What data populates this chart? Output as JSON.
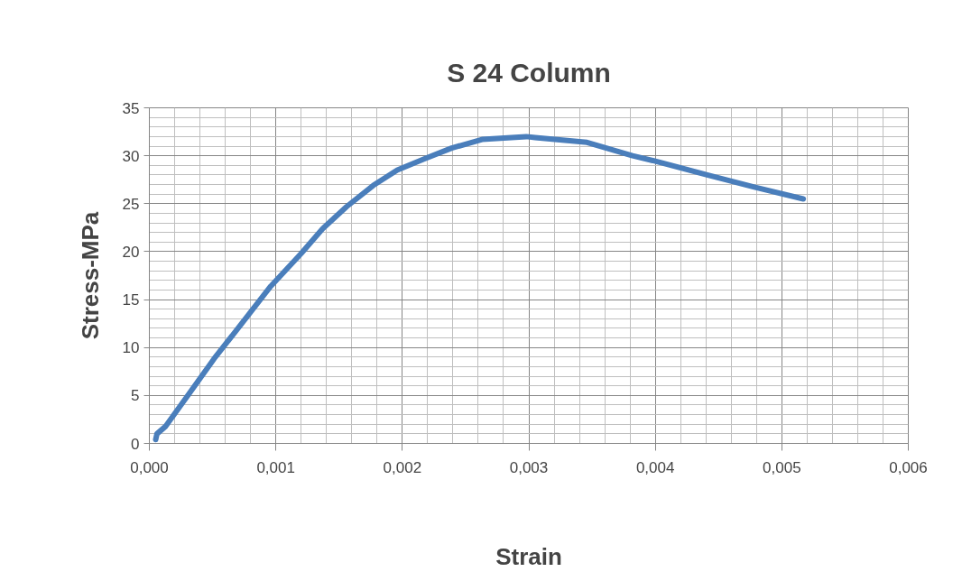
{
  "chart_data": {
    "type": "line",
    "title": "S 24 Column",
    "xlabel": "Strain",
    "ylabel": "Stress-MPa",
    "x": [
      5e-05,
      6e-05,
      0.00013,
      0.00032,
      0.00051,
      0.00073,
      0.00096,
      0.0012,
      0.00137,
      0.00156,
      0.00177,
      0.00196,
      0.00218,
      0.00239,
      0.00263,
      0.00298,
      0.00305,
      0.00346,
      0.00382,
      0.00398,
      0.00441,
      0.00479,
      0.00517
    ],
    "series": [
      {
        "color": "#4a7ebb",
        "values": [
          0.4,
          1.0,
          1.8,
          5.3,
          8.8,
          12.5,
          16.4,
          19.8,
          22.4,
          24.7,
          26.9,
          28.5,
          29.7,
          30.8,
          31.7,
          32.0,
          31.9,
          31.4,
          30.0,
          29.5,
          28.0,
          26.7,
          25.5
        ]
      }
    ],
    "xlim": [
      0,
      0.006
    ],
    "xticks": [
      {
        "value": 0,
        "label": "0,000"
      },
      {
        "value": 0.0002,
        "label": null
      },
      {
        "value": 0.0004,
        "label": null
      },
      {
        "value": 0.0006,
        "label": null
      },
      {
        "value": 0.0008,
        "label": null
      },
      {
        "value": 0.001,
        "label": "0,001"
      },
      {
        "value": 0.0012,
        "label": null
      },
      {
        "value": 0.0014,
        "label": null
      },
      {
        "value": 0.0016,
        "label": null
      },
      {
        "value": 0.0018,
        "label": null
      },
      {
        "value": 0.002,
        "label": "0,002"
      },
      {
        "value": 0.0022,
        "label": null
      },
      {
        "value": 0.0024,
        "label": null
      },
      {
        "value": 0.0026,
        "label": null
      },
      {
        "value": 0.0028,
        "label": null
      },
      {
        "value": 0.003,
        "label": "0,003"
      },
      {
        "value": 0.0032,
        "label": null
      },
      {
        "value": 0.0034,
        "label": null
      },
      {
        "value": 0.0036,
        "label": null
      },
      {
        "value": 0.0038,
        "label": null
      },
      {
        "value": 0.004,
        "label": "0,004"
      },
      {
        "value": 0.0042,
        "label": null
      },
      {
        "value": 0.0044,
        "label": null
      },
      {
        "value": 0.0046,
        "label": null
      },
      {
        "value": 0.0048,
        "label": null
      },
      {
        "value": 0.005,
        "label": "0,005"
      },
      {
        "value": 0.0052,
        "label": null
      },
      {
        "value": 0.0054,
        "label": null
      },
      {
        "value": 0.0056,
        "label": null
      },
      {
        "value": 0.0058,
        "label": null
      },
      {
        "value": 0.006,
        "label": "0,006"
      }
    ],
    "ylim": [
      0,
      35
    ],
    "yticks": [
      0,
      {
        "value": 1,
        "label": null
      },
      {
        "value": 2,
        "label": null
      },
      {
        "value": 3,
        "label": null
      },
      {
        "value": 4,
        "label": null
      },
      5,
      {
        "value": 6,
        "label": null
      },
      {
        "value": 7,
        "label": null
      },
      {
        "value": 8,
        "label": null
      },
      {
        "value": 9,
        "label": null
      },
      10,
      {
        "value": 11,
        "label": null
      },
      {
        "value": 12,
        "label": null
      },
      {
        "value": 13,
        "label": null
      },
      {
        "value": 14,
        "label": null
      },
      15,
      {
        "value": 16,
        "label": null
      },
      {
        "value": 17,
        "label": null
      },
      {
        "value": 18,
        "label": null
      },
      {
        "value": 19,
        "label": null
      },
      20,
      {
        "value": 21,
        "label": null
      },
      {
        "value": 22,
        "label": null
      },
      {
        "value": 23,
        "label": null
      },
      {
        "value": 24,
        "label": null
      },
      25,
      {
        "value": 26,
        "label": null
      },
      {
        "value": 27,
        "label": null
      },
      {
        "value": 28,
        "label": null
      },
      {
        "value": 29,
        "label": null
      },
      30,
      {
        "value": 31,
        "label": null
      },
      {
        "value": 32,
        "label": null
      },
      {
        "value": 33,
        "label": null
      },
      {
        "value": 34,
        "label": null
      },
      35
    ],
    "grid": true,
    "marker": "none",
    "line_style": "solid"
  }
}
